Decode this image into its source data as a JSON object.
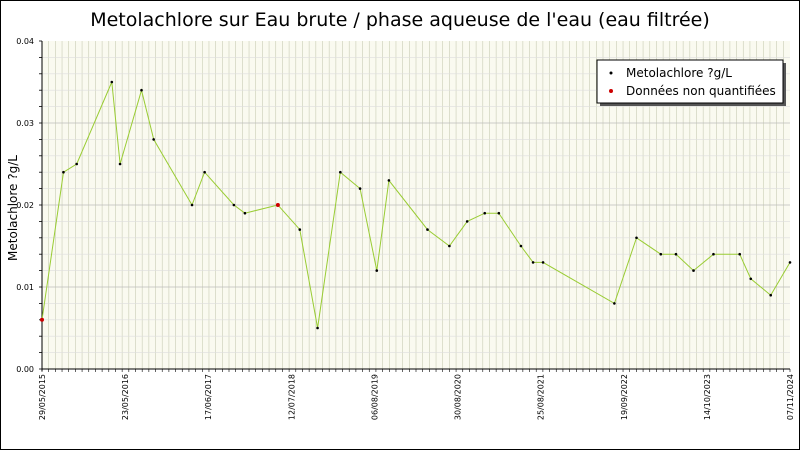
{
  "chart_data": {
    "type": "line",
    "title": "Metolachlore sur Eau brute / phase aqueuse de l'eau (eau filtrée)",
    "ylabel": "Metolachlore ?g/L",
    "xlabel": "",
    "ylim": [
      0,
      0.04
    ],
    "y_ticks": [
      "0.00",
      "0.01",
      "0.02",
      "0.03",
      "0.04"
    ],
    "xlim": [
      "2015-05-29",
      "2024-11-07"
    ],
    "x_ticks": [
      "29/05/2015",
      "23/05/2016",
      "17/06/2017",
      "12/07/2018",
      "06/08/2019",
      "30/08/2020",
      "25/08/2021",
      "19/09/2022",
      "14/10/2023",
      "07/11/2024"
    ],
    "grid": true,
    "legend_position": "top-right",
    "colors": {
      "line": "#99cc33",
      "point": "#000000",
      "non_quantified": "#cc0000",
      "grid_minor": "#c8ccb4",
      "grid_major": "#c8c8c8"
    },
    "series": [
      {
        "name": "Metolachlore ?g/L",
        "points": [
          {
            "x": "2015-05-29",
            "y": 0.006,
            "nq": true
          },
          {
            "x": "2015-09-05",
            "y": 0.024
          },
          {
            "x": "2015-11-05",
            "y": 0.025
          },
          {
            "x": "2016-04-15",
            "y": 0.035
          },
          {
            "x": "2016-05-23",
            "y": 0.025
          },
          {
            "x": "2016-08-30",
            "y": 0.034
          },
          {
            "x": "2016-10-25",
            "y": 0.028
          },
          {
            "x": "2017-04-20",
            "y": 0.02
          },
          {
            "x": "2017-06-17",
            "y": 0.024
          },
          {
            "x": "2017-10-30",
            "y": 0.02
          },
          {
            "x": "2017-12-20",
            "y": 0.019
          },
          {
            "x": "2018-05-21",
            "y": 0.02,
            "nq": true
          },
          {
            "x": "2018-08-30",
            "y": 0.017
          },
          {
            "x": "2018-11-20",
            "y": 0.005
          },
          {
            "x": "2019-03-05",
            "y": 0.024
          },
          {
            "x": "2019-06-04",
            "y": 0.022
          },
          {
            "x": "2019-08-20",
            "y": 0.012
          },
          {
            "x": "2019-10-15",
            "y": 0.023
          },
          {
            "x": "2020-04-10",
            "y": 0.017
          },
          {
            "x": "2020-07-20",
            "y": 0.015
          },
          {
            "x": "2020-10-10",
            "y": 0.018
          },
          {
            "x": "2020-12-30",
            "y": 0.019
          },
          {
            "x": "2021-03-05",
            "y": 0.019
          },
          {
            "x": "2021-06-15",
            "y": 0.015
          },
          {
            "x": "2021-08-10",
            "y": 0.013
          },
          {
            "x": "2021-09-25",
            "y": 0.013
          },
          {
            "x": "2022-08-20",
            "y": 0.008
          },
          {
            "x": "2022-11-30",
            "y": 0.016
          },
          {
            "x": "2023-03-22",
            "y": 0.014
          },
          {
            "x": "2023-05-31",
            "y": 0.014
          },
          {
            "x": "2023-08-20",
            "y": 0.012
          },
          {
            "x": "2023-11-20",
            "y": 0.014
          },
          {
            "x": "2024-03-20",
            "y": 0.014
          },
          {
            "x": "2024-05-10",
            "y": 0.011
          },
          {
            "x": "2024-08-10",
            "y": 0.009
          },
          {
            "x": "2024-11-07",
            "y": 0.013
          }
        ]
      }
    ],
    "legend": [
      {
        "label": "Metolachlore ?g/L",
        "marker": "black-dot"
      },
      {
        "label": "Données non quantifiées",
        "marker": "red-dot"
      }
    ]
  }
}
